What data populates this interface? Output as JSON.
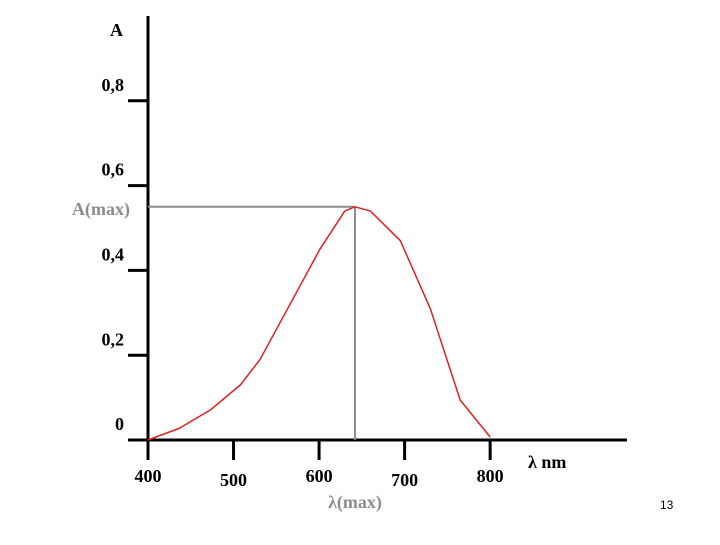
{
  "chart_data": {
    "type": "line",
    "y_label": "A",
    "x_label": "λ nm",
    "peak_y_label": "A(max)",
    "peak_x_label": "λ(max)",
    "x": [
      400,
      437,
      473,
      508,
      531,
      566,
      601,
      630,
      642,
      660,
      695,
      730,
      765,
      800
    ],
    "series": [
      {
        "color": "#e02020",
        "values": [
          0,
          0.028,
          0.071,
          0.13,
          0.19,
          0.32,
          0.45,
          0.54,
          0.55,
          0.54,
          0.47,
          0.31,
          0.094,
          0.007
        ]
      }
    ],
    "peak": {
      "x": 642,
      "y": 0.55,
      "color": "#8c8c8c"
    },
    "xlim": [
      400,
      960
    ],
    "ylim": [
      0,
      1
    ],
    "xticks": [
      400,
      500,
      600,
      700,
      800
    ],
    "yticks": [
      0,
      {
        "value": 0.2,
        "label": "0,2"
      },
      {
        "value": 0.4,
        "label": "0,4"
      },
      {
        "value": 0.6,
        "label": "0,6"
      },
      {
        "value": 0.8,
        "label": "0,8"
      }
    ]
  },
  "page_number": "13"
}
